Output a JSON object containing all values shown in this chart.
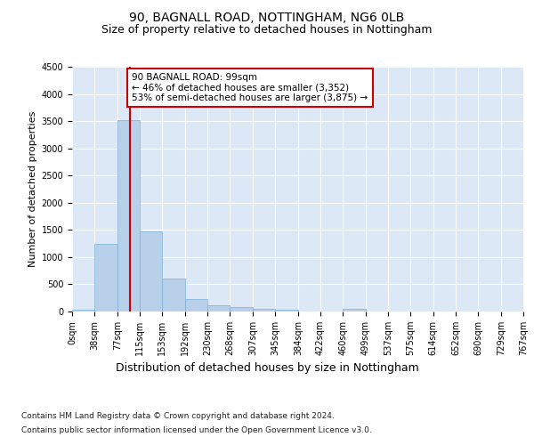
{
  "title1": "90, BAGNALL ROAD, NOTTINGHAM, NG6 0LB",
  "title2": "Size of property relative to detached houses in Nottingham",
  "xlabel": "Distribution of detached houses by size in Nottingham",
  "ylabel": "Number of detached properties",
  "footnote1": "Contains HM Land Registry data © Crown copyright and database right 2024.",
  "footnote2": "Contains public sector information licensed under the Open Government Licence v3.0.",
  "annotation_title": "90 BAGNALL ROAD: 99sqm",
  "annotation_line1": "← 46% of detached houses are smaller (3,352)",
  "annotation_line2": "53% of semi-detached houses are larger (3,875) →",
  "property_size": 99,
  "bin_edges": [
    0,
    38,
    77,
    115,
    153,
    192,
    230,
    268,
    307,
    345,
    384,
    422,
    460,
    499,
    537,
    575,
    614,
    652,
    690,
    729,
    767
  ],
  "bar_values": [
    40,
    1250,
    3520,
    1480,
    600,
    230,
    120,
    90,
    45,
    25,
    5,
    0,
    50,
    0,
    0,
    0,
    0,
    0,
    0,
    0
  ],
  "bar_color": "#b8d0ea",
  "bar_edge_color": "#7aafd4",
  "vline_color": "#cc0000",
  "vline_x": 99,
  "ylim": [
    0,
    4500
  ],
  "yticks": [
    0,
    500,
    1000,
    1500,
    2000,
    2500,
    3000,
    3500,
    4000,
    4500
  ],
  "fig_bg_color": "#ffffff",
  "plot_bg_color": "#dce8f5",
  "grid_color": "#ffffff",
  "annotation_box_facecolor": "#ffffff",
  "annotation_box_edgecolor": "#cc0000",
  "title1_fontsize": 10,
  "title2_fontsize": 9,
  "ylabel_fontsize": 8,
  "xlabel_fontsize": 9,
  "tick_fontsize": 7,
  "footnote_fontsize": 6.5
}
